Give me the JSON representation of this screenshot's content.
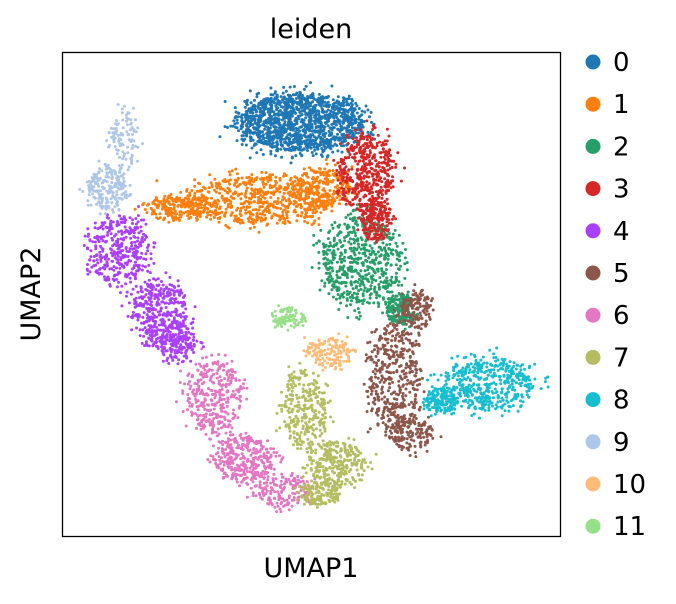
{
  "chart_data": {
    "type": "scatter",
    "title": "leiden",
    "xlabel": "UMAP1",
    "ylabel": "UMAP2",
    "xlim": [
      0,
      100
    ],
    "ylim": [
      0,
      100
    ],
    "grid": false,
    "axis_ticks": false,
    "legend_placement": "right-outside",
    "legend_entries": [
      "0",
      "1",
      "2",
      "3",
      "4",
      "5",
      "6",
      "7",
      "8",
      "9",
      "10",
      "11"
    ],
    "colors": [
      "#1f77b4",
      "#ff7f0e",
      "#279e68",
      "#d62728",
      "#aa40fc",
      "#8c564b",
      "#e377c2",
      "#b5bd61",
      "#17becf",
      "#aec7e8",
      "#ffbb78",
      "#98df8a"
    ],
    "clusters": [
      {
        "name": "0",
        "n": 1400,
        "regions": [
          {
            "cx": 48.0,
            "cy": 85.5,
            "rx": 12.5,
            "ry": 5.8,
            "w": 1
          }
        ]
      },
      {
        "name": "1",
        "n": 1050,
        "regions": [
          {
            "cx": 40.0,
            "cy": 69.5,
            "rx": 14.0,
            "ry": 5.0,
            "w": 3
          },
          {
            "cx": 23.0,
            "cy": 68.0,
            "rx": 6.0,
            "ry": 2.5,
            "w": 1
          },
          {
            "cx": 52.0,
            "cy": 72.0,
            "rx": 6.0,
            "ry": 4.0,
            "w": 1
          }
        ]
      },
      {
        "name": "2",
        "n": 800,
        "regions": [
          {
            "cx": 60.0,
            "cy": 57.0,
            "rx": 8.0,
            "ry": 9.0,
            "w": 3
          },
          {
            "cx": 68.0,
            "cy": 47.0,
            "rx": 3.0,
            "ry": 3.0,
            "w": 1
          }
        ]
      },
      {
        "name": "3",
        "n": 650,
        "regions": [
          {
            "cx": 61.0,
            "cy": 75.0,
            "rx": 5.5,
            "ry": 8.0,
            "w": 3
          },
          {
            "cx": 63.0,
            "cy": 65.0,
            "rx": 3.0,
            "ry": 4.0,
            "w": 1
          }
        ]
      },
      {
        "name": "4",
        "n": 900,
        "regions": [
          {
            "cx": 11.5,
            "cy": 59.0,
            "rx": 6.0,
            "ry": 7.0,
            "w": 2
          },
          {
            "cx": 19.5,
            "cy": 46.5,
            "rx": 5.5,
            "ry": 6.5,
            "w": 2
          },
          {
            "cx": 23.5,
            "cy": 40.0,
            "rx": 4.0,
            "ry": 4.0,
            "w": 1
          }
        ]
      },
      {
        "name": "5",
        "n": 700,
        "regions": [
          {
            "cx": 66.5,
            "cy": 33.0,
            "rx": 5.0,
            "ry": 11.0,
            "w": 3
          },
          {
            "cx": 70.0,
            "cy": 21.5,
            "rx": 4.5,
            "ry": 3.5,
            "w": 1
          },
          {
            "cx": 71.0,
            "cy": 47.0,
            "rx": 3.0,
            "ry": 4.0,
            "w": 1
          }
        ]
      },
      {
        "name": "6",
        "n": 850,
        "regions": [
          {
            "cx": 30.5,
            "cy": 29.0,
            "rx": 5.5,
            "ry": 7.5,
            "w": 2
          },
          {
            "cx": 36.5,
            "cy": 16.0,
            "rx": 6.0,
            "ry": 4.5,
            "w": 2
          },
          {
            "cx": 44.5,
            "cy": 9.5,
            "rx": 5.5,
            "ry": 3.5,
            "w": 1
          }
        ]
      },
      {
        "name": "7",
        "n": 700,
        "regions": [
          {
            "cx": 48.5,
            "cy": 26.0,
            "rx": 4.5,
            "ry": 8.0,
            "w": 2
          },
          {
            "cx": 55.0,
            "cy": 15.0,
            "rx": 5.5,
            "ry": 4.5,
            "w": 2
          },
          {
            "cx": 51.5,
            "cy": 9.0,
            "rx": 4.0,
            "ry": 2.5,
            "w": 1
          }
        ]
      },
      {
        "name": "8",
        "n": 650,
        "regions": [
          {
            "cx": 85.5,
            "cy": 31.5,
            "rx": 9.0,
            "ry": 5.5,
            "w": 3
          },
          {
            "cx": 76.0,
            "cy": 28.0,
            "rx": 3.0,
            "ry": 2.5,
            "w": 1
          }
        ]
      },
      {
        "name": "9",
        "n": 300,
        "regions": [
          {
            "cx": 9.0,
            "cy": 72.0,
            "rx": 4.0,
            "ry": 4.5,
            "w": 2
          },
          {
            "cx": 12.5,
            "cy": 82.0,
            "rx": 2.8,
            "ry": 6.0,
            "w": 1
          }
        ]
      },
      {
        "name": "10",
        "n": 150,
        "regions": [
          {
            "cx": 53.5,
            "cy": 38.0,
            "rx": 4.5,
            "ry": 3.0,
            "w": 1
          }
        ]
      },
      {
        "name": "11",
        "n": 90,
        "regions": [
          {
            "cx": 45.5,
            "cy": 45.0,
            "rx": 3.0,
            "ry": 2.2,
            "w": 1
          }
        ]
      }
    ]
  }
}
